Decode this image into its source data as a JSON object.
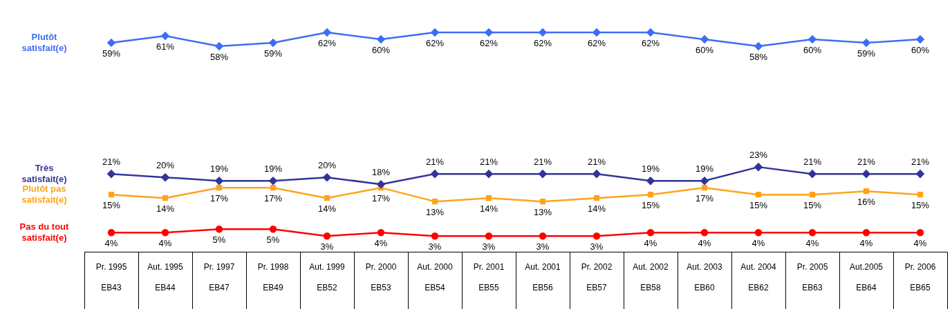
{
  "chart_data": {
    "type": "line",
    "categories": [
      "Pr. 1995\nEB43",
      "Aut. 1995\nEB44",
      "Pr. 1997\nEB47",
      "Pr. 1998\nEB49",
      "Aut. 1999\nEB52",
      "Pr. 2000\nEB53",
      "Aut. 2000\nEB54",
      "Pr. 2001\nEB55",
      "Aut. 2001\nEB56",
      "Pr. 2002\nEB57",
      "Aut. 2002\nEB58",
      "Aut. 2003\nEB60",
      "Aut. 2004\nEB62",
      "Pr. 2005\nEB63",
      "Aut.2005\nEB64",
      "Pr. 2006\nEB65"
    ],
    "legend": false,
    "series": [
      {
        "name": "Plutôt satisfait(e)",
        "color": "#3f6cf5",
        "marker": "diamond",
        "values": [
          59,
          61,
          58,
          59,
          62,
          60,
          62,
          62,
          62,
          62,
          62,
          60,
          58,
          60,
          59,
          60
        ],
        "value_labels": [
          "59%",
          "61%",
          "58%",
          "59%",
          "62%",
          "60%",
          "62%",
          "62%",
          "62%",
          "62%",
          "62%",
          "60%",
          "58%",
          "60%",
          "59%",
          "60%"
        ]
      },
      {
        "name": "Très satisfait(e)",
        "color": "#333399",
        "marker": "diamond",
        "values": [
          21,
          20,
          19,
          19,
          20,
          18,
          21,
          21,
          21,
          21,
          19,
          19,
          23,
          21,
          21,
          21
        ],
        "value_labels": [
          "21%",
          "20%",
          "19%",
          "19%",
          "20%",
          "18%",
          "21%",
          "21%",
          "21%",
          "21%",
          "19%",
          "19%",
          "23%",
          "21%",
          "21%",
          "21%"
        ]
      },
      {
        "name": "Plutôt pas satisfait(e)",
        "color": "#ffa31a",
        "marker": "square",
        "values": [
          15,
          14,
          17,
          17,
          14,
          17,
          13,
          14,
          13,
          14,
          15,
          17,
          15,
          15,
          16,
          15
        ],
        "value_labels": [
          "15%",
          "14%",
          "17%",
          "17%",
          "14%",
          "17%",
          "13%",
          "14%",
          "13%",
          "14%",
          "15%",
          "17%",
          "15%",
          "15%",
          "16%",
          "15%"
        ]
      },
      {
        "name": "Pas du tout satisfait(e)",
        "color": "#ff0000",
        "marker": "circle",
        "values": [
          4,
          4,
          5,
          5,
          3,
          4,
          3,
          3,
          3,
          3,
          4,
          4,
          4,
          4,
          4,
          4
        ],
        "value_labels": [
          "4%",
          "4%",
          "5%",
          "5%",
          "3%",
          "4%",
          "3%",
          "3%",
          "3%",
          "3%",
          "4%",
          "4%",
          "4%",
          "4%",
          "4%",
          "4%"
        ]
      }
    ]
  }
}
